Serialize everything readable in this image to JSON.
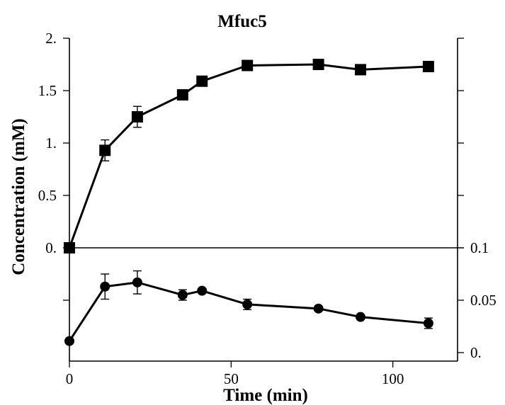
{
  "chart_data": {
    "type": "line",
    "title": "Mfuc5",
    "xlabel": "Time (min)",
    "ylabel": "Concentration (mM)",
    "xlim": [
      0,
      120
    ],
    "x_ticks": [
      0,
      50,
      100
    ],
    "x_tick_labels": [
      "0",
      "50",
      "100"
    ],
    "panels": [
      {
        "name": "top",
        "axis": "left",
        "ylim": [
          0,
          2
        ],
        "y_ticks": [
          0,
          0.5,
          1,
          1.5,
          2
        ],
        "y_tick_labels": [
          "0.",
          "0.5",
          "1.",
          "1.5",
          "2."
        ],
        "series": [
          {
            "marker": "square",
            "x": [
              0,
              11,
              21,
              35,
              41,
              55,
              77,
              90,
              111
            ],
            "values": [
              0.0,
              0.93,
              1.25,
              1.46,
              1.59,
              1.74,
              1.75,
              1.7,
              1.73
            ],
            "errors": [
              0.0,
              0.1,
              0.1,
              0.02,
              0.03,
              0.03,
              0.03,
              0.04,
              0.03
            ]
          }
        ]
      },
      {
        "name": "bottom",
        "axis": "right",
        "ylim": [
          0,
          0.1
        ],
        "y_ticks": [
          0,
          0.05,
          0.1
        ],
        "y_tick_labels": [
          "0.",
          "0.05",
          "0.1"
        ],
        "series": [
          {
            "marker": "circle",
            "x": [
              0,
              11,
              21,
              35,
              41,
              55,
              77,
              90,
              111
            ],
            "values": [
              0.011,
              0.063,
              0.067,
              0.055,
              0.059,
              0.046,
              0.042,
              0.034,
              0.028
            ],
            "errors": [
              0.0,
              0.012,
              0.011,
              0.005,
              0.002,
              0.005,
              0.002,
              0.002,
              0.005
            ]
          }
        ]
      }
    ]
  }
}
